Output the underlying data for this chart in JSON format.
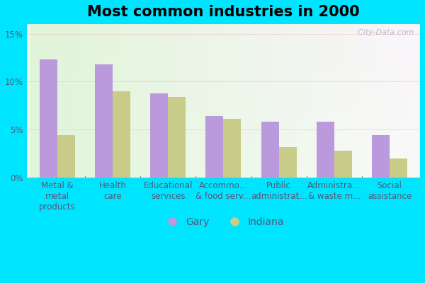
{
  "title": "Most common industries in 2000",
  "categories": [
    "Metal &\nmetal\nproducts",
    "Health\ncare",
    "Educational\nservices",
    "Accommo...\n& food serv...",
    "Public\nadministrat...",
    "Administra...\n& waste m...",
    "Social\nassistance"
  ],
  "gary_values": [
    12.3,
    11.8,
    8.8,
    6.4,
    5.8,
    5.8,
    4.4
  ],
  "indiana_values": [
    4.4,
    9.0,
    8.4,
    6.1,
    3.2,
    2.8,
    2.0
  ],
  "gary_color": "#bb99dd",
  "indiana_color": "#c8cc88",
  "background_outer": "#00e5ff",
  "ylim": [
    0,
    16
  ],
  "yticks": [
    0,
    5,
    10,
    15
  ],
  "ytick_labels": [
    "0%",
    "5%",
    "10%",
    "15%"
  ],
  "bar_width": 0.32,
  "title_fontsize": 15,
  "tick_fontsize": 8.5,
  "label_color": "#555577",
  "watermark": "  City-Data.com"
}
